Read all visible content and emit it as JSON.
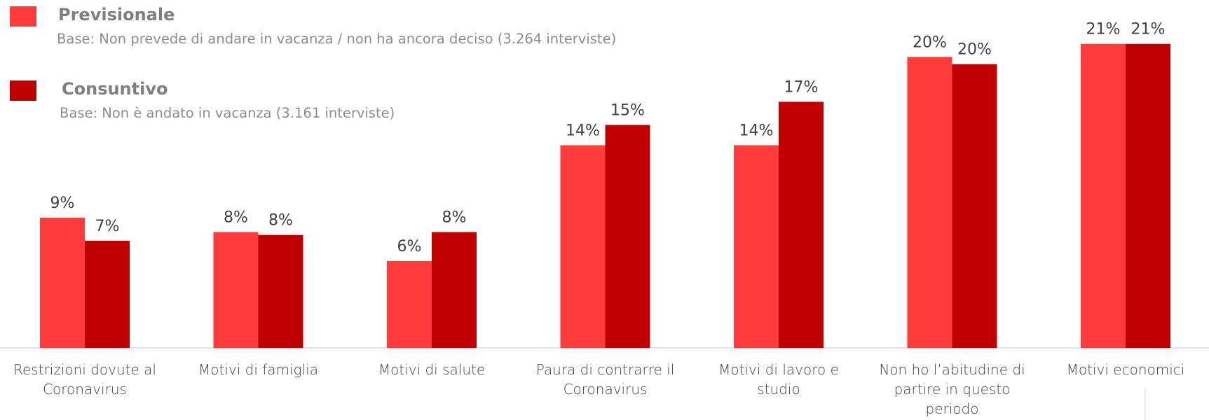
{
  "chart_data": {
    "type": "bar",
    "categories": [
      "Restrizioni dovute al Coronavirus",
      "Motivi di famiglia",
      "Motivi di salute",
      "Paura di contrarre il Coronavirus",
      "Motivi di lavoro e studio",
      "Non ho l’abitudine di partire in questo periodo",
      "Motivi economici"
    ],
    "series": [
      {
        "name": "Previsionale",
        "base": "Base: Non prevede di andare in vacanza / non ha ancora deciso (3.264 interviste)",
        "color": "#ff3b3b",
        "values": [
          9.0,
          8.0,
          6.0,
          14.0,
          14.0,
          20.1,
          21.0
        ],
        "value_labels": [
          "9%",
          "8%",
          "6%",
          "14%",
          "14%",
          "20%",
          "21%"
        ]
      },
      {
        "name": "Consuntivo",
        "base": "Base: Non è andato in vacanza (3.161 interviste)",
        "color": "#c00000",
        "values": [
          7.4,
          7.8,
          8.0,
          15.4,
          17.0,
          19.6,
          21.0
        ],
        "value_labels": [
          "7%",
          "8%",
          "8%",
          "15%",
          "17%",
          "20%",
          "21%"
        ]
      }
    ],
    "ylim": [
      0,
      22
    ]
  }
}
